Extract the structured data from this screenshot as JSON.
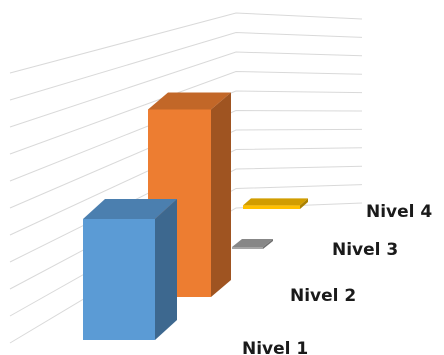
{
  "chart_data": {
    "type": "bar",
    "categories": [
      "Nivel 1",
      "Nivel 2",
      "Nivel 3",
      "Nivel 4"
    ],
    "values": [
      100,
      155,
      1,
      3
    ],
    "ylim": [
      0,
      200
    ],
    "grid": true,
    "legend": "none",
    "colors": {
      "Nivel 1": "#5B9BD5",
      "Nivel 2": "#ED7D31",
      "Nivel 3": "#A5A5A5",
      "Nivel 4": "#FFC000"
    }
  }
}
